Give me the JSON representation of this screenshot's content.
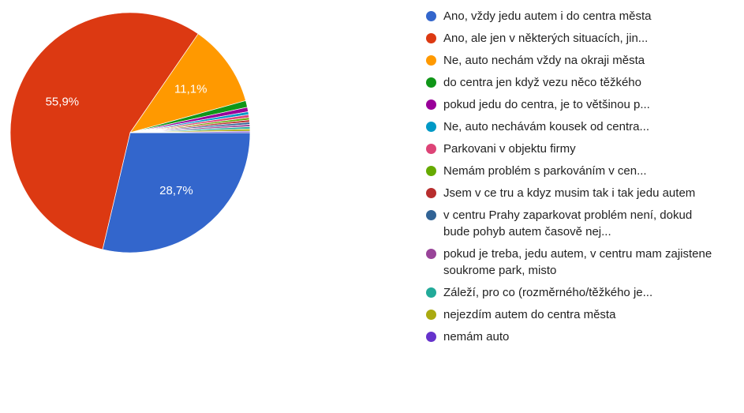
{
  "chart_data": {
    "type": "pie",
    "categories": [
      "Ano, vždy jedu autem i do centra města",
      "Ano, ale jen v některých situacích, jin...",
      "Ne, auto nechám vždy na okraji města",
      "do centra jen když vezu něco těžkého",
      "pokud jedu do centra, je to většinou p...",
      "Ne, auto nechávám kousek od centra...",
      "Parkovani v objektu firmy",
      "Nemám problém s parkováním v cen...",
      "Jsem v ce tru a kdyz musim tak i tak jedu autem",
      "v centru Prahy zaparkovat problém není, dokud bude pohyb autem časově nej...",
      "pokud je treba, jedu autem, v centru mam zajistene soukrome park, misto",
      "Záleží, pro co (rozměrného/těžkého je...",
      "nejezdím autem do centra města",
      "nemám auto"
    ],
    "values": [
      28.7,
      55.9,
      11.1,
      0.9,
      0.6,
      0.4,
      0.4,
      0.3,
      0.3,
      0.3,
      0.3,
      0.3,
      0.3,
      0.2
    ],
    "value_labels": [
      "28,7%",
      "55,9%",
      "11,1%",
      null,
      null,
      null,
      null,
      null,
      null,
      null,
      null,
      null,
      null,
      null
    ],
    "colors": [
      "#3366cc",
      "#dc3912",
      "#ff9900",
      "#109618",
      "#990099",
      "#0099c6",
      "#dd4477",
      "#66aa00",
      "#b82e2e",
      "#316395",
      "#994499",
      "#22aa99",
      "#aaaa11",
      "#6633cc"
    ],
    "legend": "right"
  }
}
